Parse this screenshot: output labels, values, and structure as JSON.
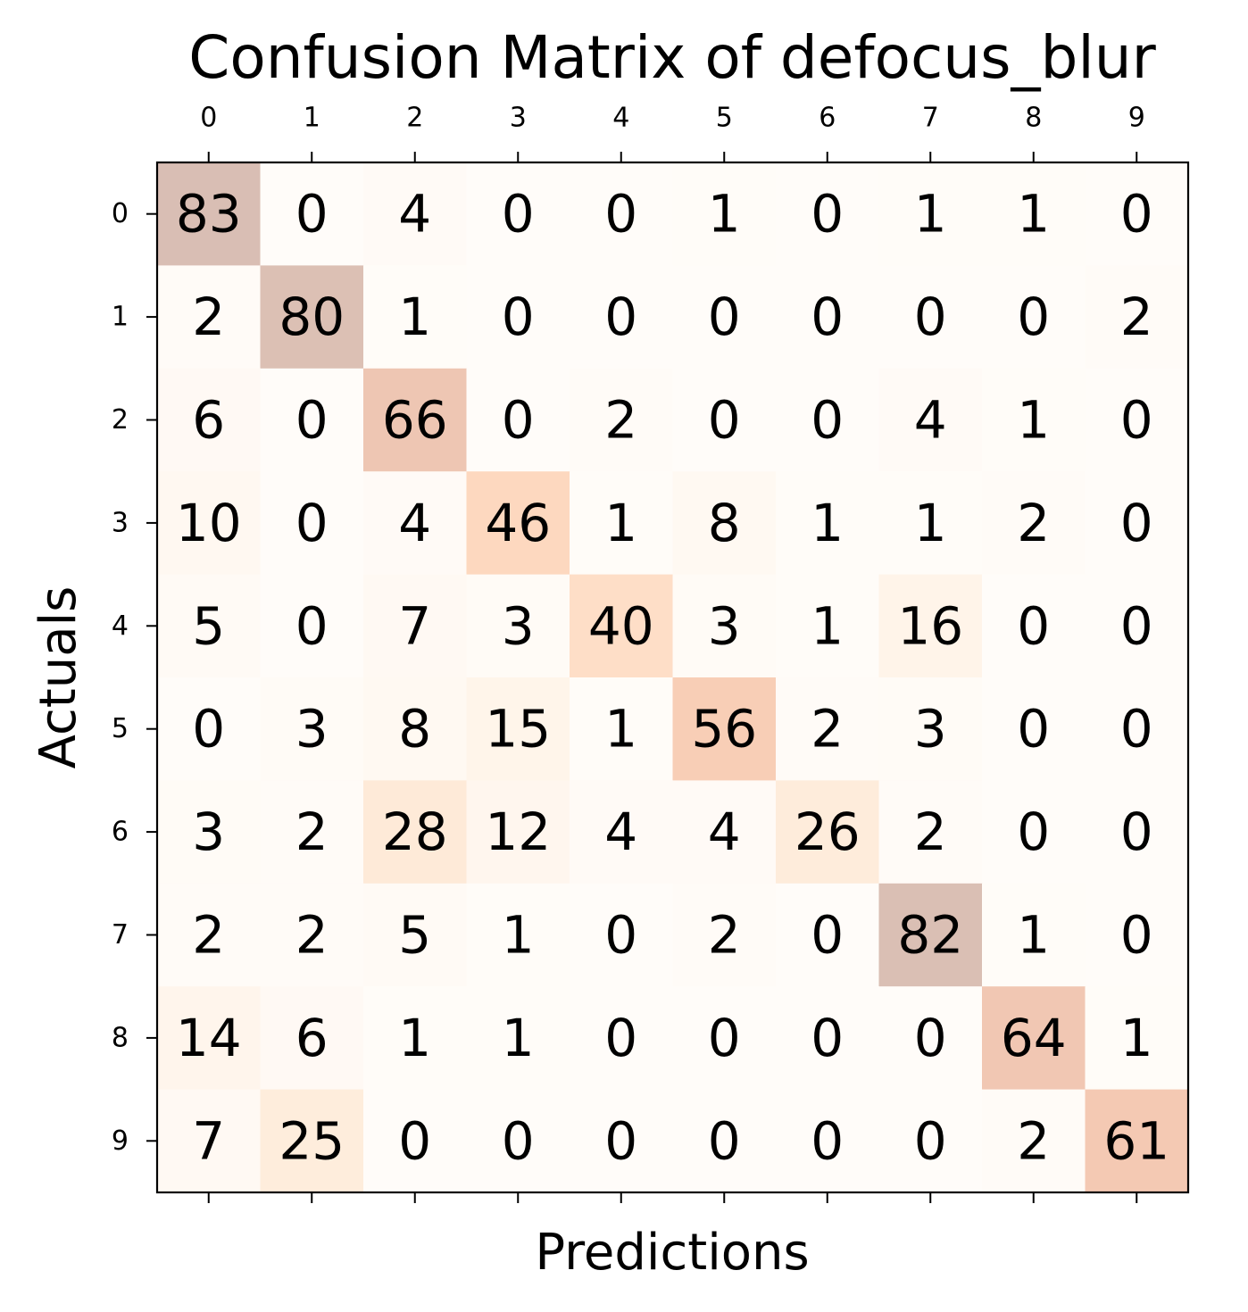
{
  "chart_data": {
    "type": "heatmap",
    "title": "Confusion Matrix of defocus_blur",
    "xlabel": "Predictions",
    "ylabel": "Actuals",
    "x_categories": [
      "0",
      "1",
      "2",
      "3",
      "4",
      "5",
      "6",
      "7",
      "8",
      "9"
    ],
    "y_categories": [
      "0",
      "1",
      "2",
      "3",
      "4",
      "5",
      "6",
      "7",
      "8",
      "9"
    ],
    "x_ticks_position": "top",
    "grid": false,
    "colormap": "Oranges",
    "alpha": 0.3,
    "colors": {
      "low": "#fff5eb",
      "high": "#7f2704"
    },
    "values": [
      [
        83,
        0,
        4,
        0,
        0,
        1,
        0,
        1,
        1,
        0
      ],
      [
        2,
        80,
        1,
        0,
        0,
        0,
        0,
        0,
        0,
        2
      ],
      [
        6,
        0,
        66,
        0,
        2,
        0,
        0,
        4,
        1,
        0
      ],
      [
        10,
        0,
        4,
        46,
        1,
        8,
        1,
        1,
        2,
        0
      ],
      [
        5,
        0,
        7,
        3,
        40,
        3,
        1,
        16,
        0,
        0
      ],
      [
        0,
        3,
        8,
        15,
        1,
        56,
        2,
        3,
        0,
        0
      ],
      [
        3,
        2,
        28,
        12,
        4,
        4,
        26,
        2,
        0,
        0
      ],
      [
        2,
        2,
        5,
        1,
        0,
        2,
        0,
        82,
        1,
        0
      ],
      [
        14,
        6,
        1,
        1,
        0,
        0,
        0,
        0,
        64,
        1
      ],
      [
        7,
        25,
        0,
        0,
        0,
        0,
        0,
        0,
        2,
        61
      ]
    ]
  }
}
